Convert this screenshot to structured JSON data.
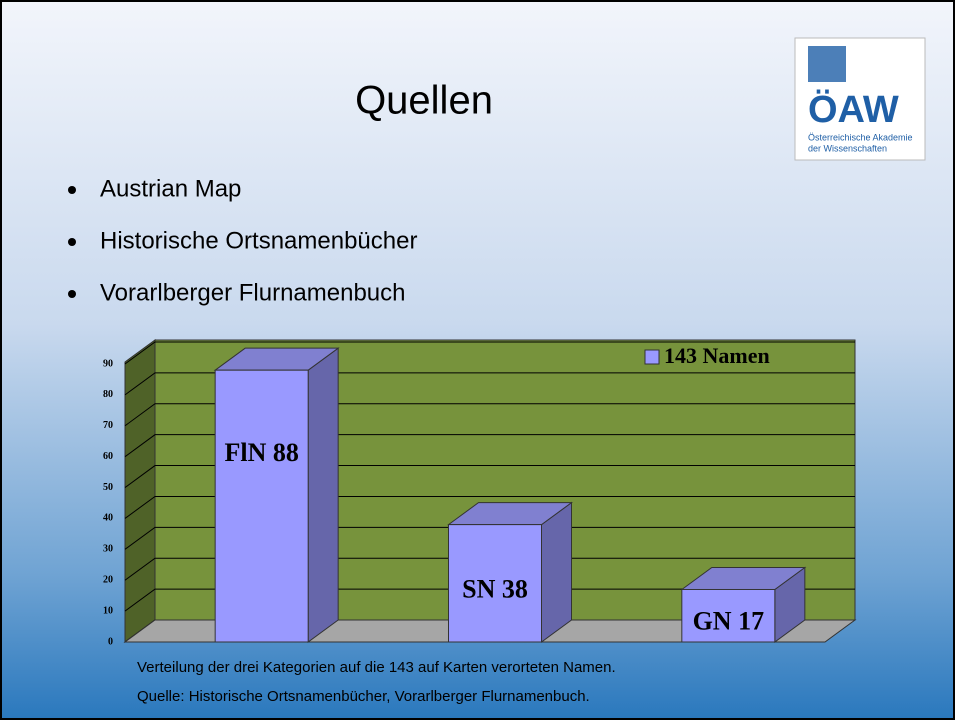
{
  "slide": {
    "title": "Quellen",
    "bullets": [
      "Austrian Map",
      "Historische Ortsnamenbücher",
      "Vorarlberger Flurnamenbuch"
    ],
    "caption": [
      "Verteilung der drei Kategorien auf die 143 auf Karten verorteten Namen.",
      "Quelle: Historische Ortsnamenbücher, Vorarlberger Flurnamenbuch."
    ],
    "logo": {
      "name": "ÖAW",
      "line1": "Österreichische Akademie",
      "line2": "der Wissenschaften"
    }
  },
  "chart_data": {
    "type": "bar3d",
    "categories": [
      null,
      null,
      null
    ],
    "series": [
      {
        "name": "143 Namen",
        "color": "#9999ff",
        "values": [
          88,
          38,
          17
        ],
        "value_labels": [
          "FlN 88",
          "SN 38",
          "GN 17"
        ]
      }
    ],
    "ylim": [
      0,
      90
    ],
    "yticks": [
      0,
      10,
      20,
      30,
      40,
      50,
      60,
      70,
      80,
      90
    ],
    "grid": true,
    "legend": "top-right"
  }
}
